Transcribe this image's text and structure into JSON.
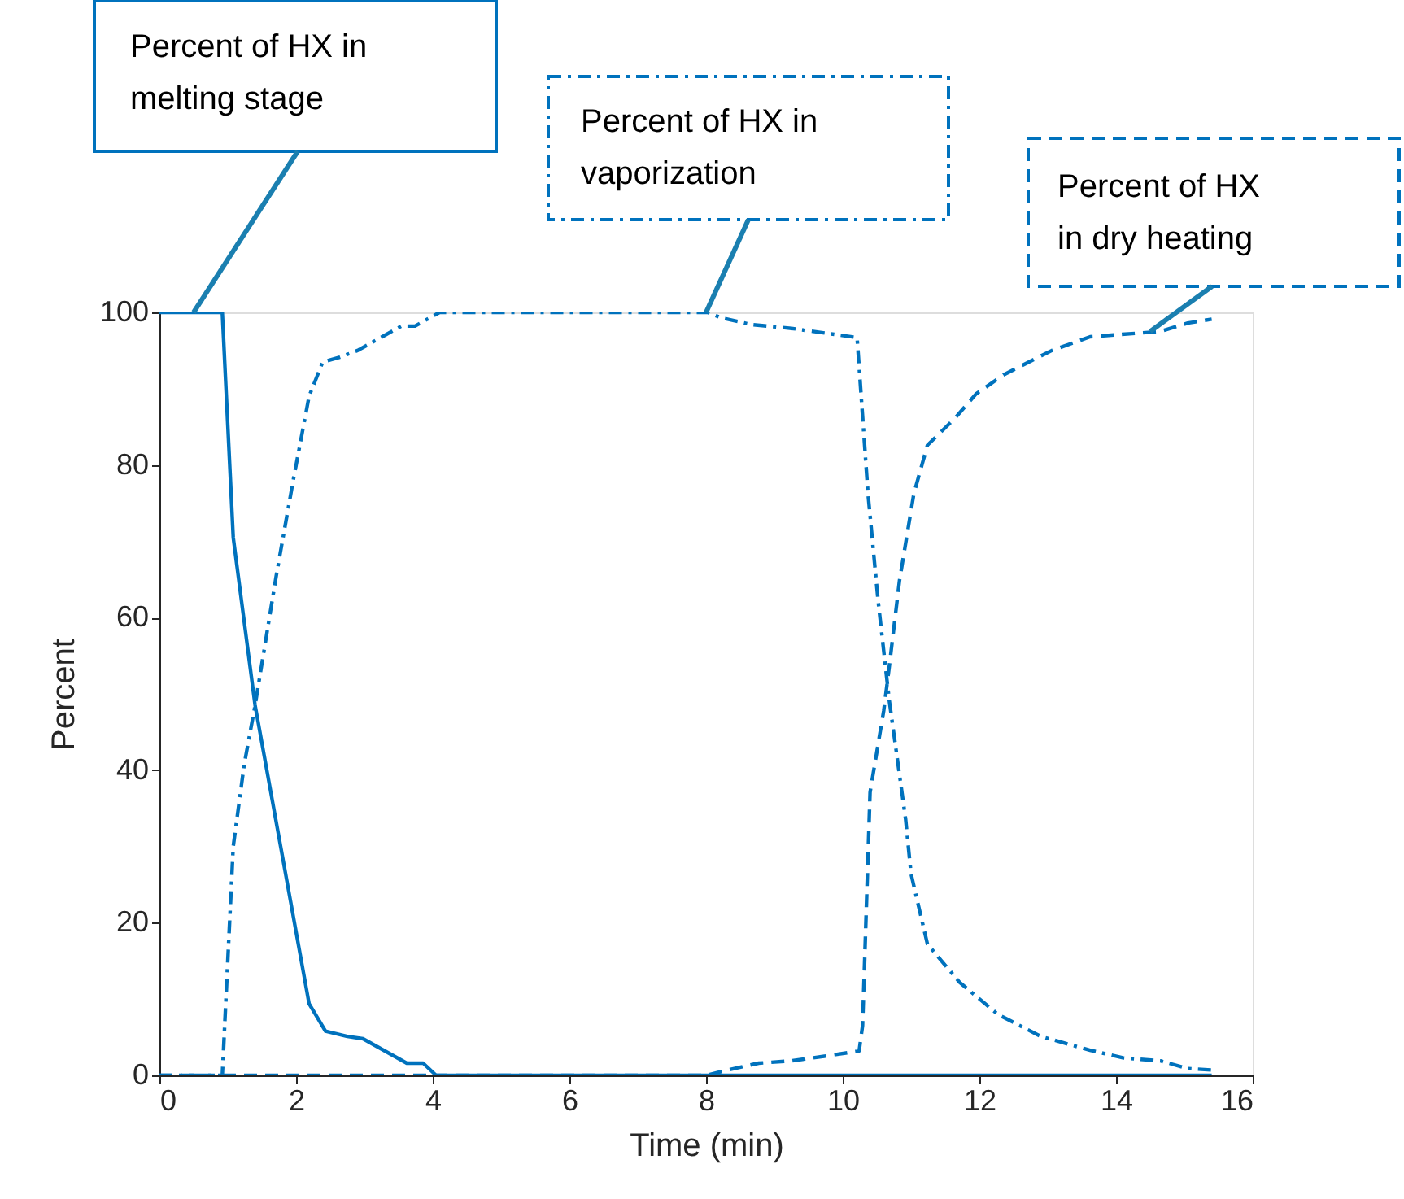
{
  "chart_data": {
    "type": "line",
    "xlabel": "Time (min)",
    "ylabel": "Percent",
    "xlim": [
      0,
      16
    ],
    "xticks": [
      0,
      2,
      4,
      6,
      8,
      10,
      12,
      14,
      16
    ],
    "ylim": [
      0,
      100
    ],
    "yticks": [
      0,
      20,
      40,
      60,
      80,
      100
    ],
    "grid": false,
    "legend": false,
    "marker": "none",
    "series": [
      {
        "color": "#0072bd",
        "line_style": "solid",
        "x": [
          0,
          0.92,
          1.08,
          1.4,
          2.19,
          2.43,
          2.75,
          2.98,
          3.62,
          3.86,
          4.05,
          15.4
        ],
        "values": [
          100,
          100,
          70.5,
          48.5,
          9.4,
          5.8,
          5.1,
          4.8,
          1.6,
          1.6,
          0,
          0
        ]
      },
      {
        "color": "#0072bd",
        "line_style": "dashdot",
        "x": [
          0,
          0.92,
          1.08,
          1.24,
          1.4,
          1.71,
          1.95,
          2.19,
          2.39,
          2.63,
          2.9,
          3.54,
          3.74,
          4.1,
          8.02,
          8.22,
          8.66,
          9.25,
          9.81,
          10.21,
          10.37,
          10.52,
          10.68,
          10.92,
          11.0,
          11.24,
          11.71,
          12.27,
          12.9,
          13.62,
          14.1,
          14.65,
          15.05,
          15.4
        ],
        "values": [
          0,
          0,
          30,
          40.7,
          48.5,
          65.5,
          77.6,
          89,
          93.5,
          94.1,
          95,
          98.2,
          98.2,
          100,
          100,
          99.3,
          98.4,
          97.9,
          97.2,
          96.7,
          76.2,
          62,
          49.2,
          33.6,
          26.4,
          17.2,
          12.2,
          8,
          5.1,
          3.3,
          2.3,
          1.9,
          0.9,
          0.7
        ]
      },
      {
        "color": "#0072bd",
        "line_style": "dashed",
        "x": [
          0,
          8.0,
          8.22,
          8.77,
          9.25,
          9.73,
          10.24,
          10.29,
          10.4,
          10.6,
          10.68,
          10.83,
          11.04,
          11.24,
          11.64,
          11.95,
          12.35,
          13.06,
          13.62,
          14.65,
          15.05,
          15.4
        ],
        "values": [
          0,
          0,
          0.5,
          1.6,
          1.9,
          2.5,
          3.2,
          6.5,
          37.1,
          47.8,
          53.5,
          64.8,
          76.2,
          82.6,
          86.1,
          89.3,
          91.8,
          95,
          96.8,
          97.5,
          98.6,
          99.1
        ]
      }
    ],
    "annotations": [
      {
        "text": "Percent of HX in melting stage",
        "x": 0.5,
        "y": 100
      },
      {
        "text": "Percent of HX in vaporization",
        "x": 8.0,
        "y": 100
      },
      {
        "text": "Percent of HX in dry heating",
        "x": 14.5,
        "y": 97.5
      }
    ]
  }
}
